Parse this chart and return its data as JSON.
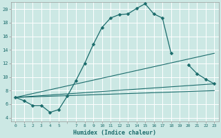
{
  "title": "",
  "xlabel": "Humidex (Indice chaleur)",
  "bg_color": "#cce8e4",
  "grid_color": "#ffffff",
  "line_color": "#1a6b6b",
  "xlim": [
    -0.5,
    23.5
  ],
  "ylim": [
    3.5,
    21.0
  ],
  "xticks": [
    0,
    1,
    2,
    3,
    4,
    5,
    6,
    7,
    8,
    9,
    10,
    11,
    12,
    13,
    14,
    15,
    16,
    17,
    18,
    19,
    20,
    21,
    22,
    23
  ],
  "xtick_labels": [
    "0",
    "1",
    "2",
    "3",
    "4",
    "5",
    "",
    "7",
    "8",
    "9",
    "10",
    "11",
    "12",
    "13",
    "14",
    "15",
    "16",
    "17",
    "18",
    "19",
    "20",
    "21",
    "22",
    "23"
  ],
  "yticks": [
    4,
    6,
    8,
    10,
    12,
    14,
    16,
    18,
    20
  ],
  "lines": [
    {
      "x": [
        0,
        1,
        2,
        3,
        4,
        5,
        6,
        7,
        8,
        9,
        10,
        11,
        12,
        13,
        14,
        15,
        16,
        17,
        18
      ],
      "y": [
        7.0,
        6.5,
        5.8,
        5.8,
        4.8,
        5.2,
        7.2,
        9.5,
        12.0,
        14.8,
        17.3,
        18.7,
        19.2,
        19.3,
        20.1,
        20.8,
        19.3,
        18.7,
        13.5
      ],
      "marker": "D",
      "markersize": 2.5,
      "linewidth": 0.9
    },
    {
      "x": [
        20,
        21,
        22,
        23
      ],
      "y": [
        11.8,
        10.5,
        9.7,
        9.0
      ],
      "marker": "D",
      "markersize": 2.5,
      "linewidth": 0.9
    },
    {
      "x": [
        0,
        23
      ],
      "y": [
        7.0,
        13.5
      ],
      "marker": null,
      "linewidth": 0.8
    },
    {
      "x": [
        0,
        23
      ],
      "y": [
        7.0,
        9.0
      ],
      "marker": null,
      "linewidth": 0.8
    },
    {
      "x": [
        0,
        23
      ],
      "y": [
        7.0,
        8.0
      ],
      "marker": null,
      "linewidth": 0.8
    }
  ]
}
